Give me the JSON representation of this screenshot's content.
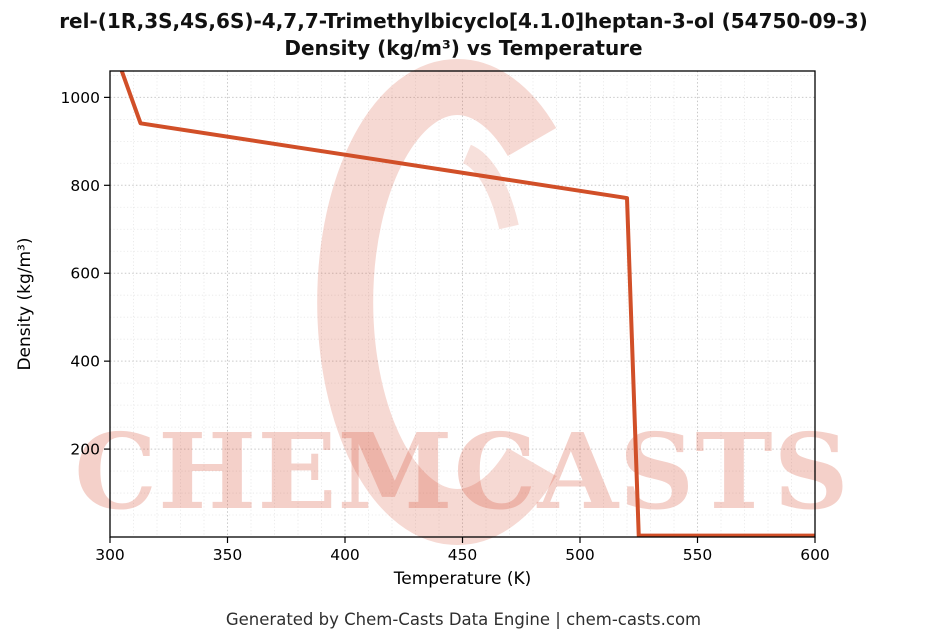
{
  "figure": {
    "footer": "Generated by Chem-Casts Data Engine | chem-casts.com",
    "watermark_text": "CHEMCASTS",
    "watermark_color": "#d65640",
    "background": "#ffffff"
  },
  "chart_data": {
    "type": "line",
    "title": "rel-(1R,3S,4S,6S)-4,7,7-Trimethylbicyclo[4.1.0]heptan-3-ol (54750-09-3)",
    "subtitle": "Density (kg/m³) vs Temperature",
    "xlabel": "Temperature (K)",
    "ylabel": "Density (kg/m³)",
    "xlim": [
      300,
      600
    ],
    "ylim": [
      0,
      1060
    ],
    "xticks": [
      300,
      350,
      400,
      450,
      500,
      550,
      600
    ],
    "yticks": [
      200,
      400,
      600,
      800,
      1000
    ],
    "x_minor_step": 10,
    "y_minor_step": 50,
    "grid": true,
    "legend": false,
    "line_color": "#d14f28",
    "line_width": 4,
    "series": [
      {
        "name": "Density (kg/m³)",
        "x": [
          305,
          313,
          520,
          525,
          600
        ],
        "y": [
          1060,
          941,
          771,
          3,
          3
        ]
      }
    ]
  }
}
